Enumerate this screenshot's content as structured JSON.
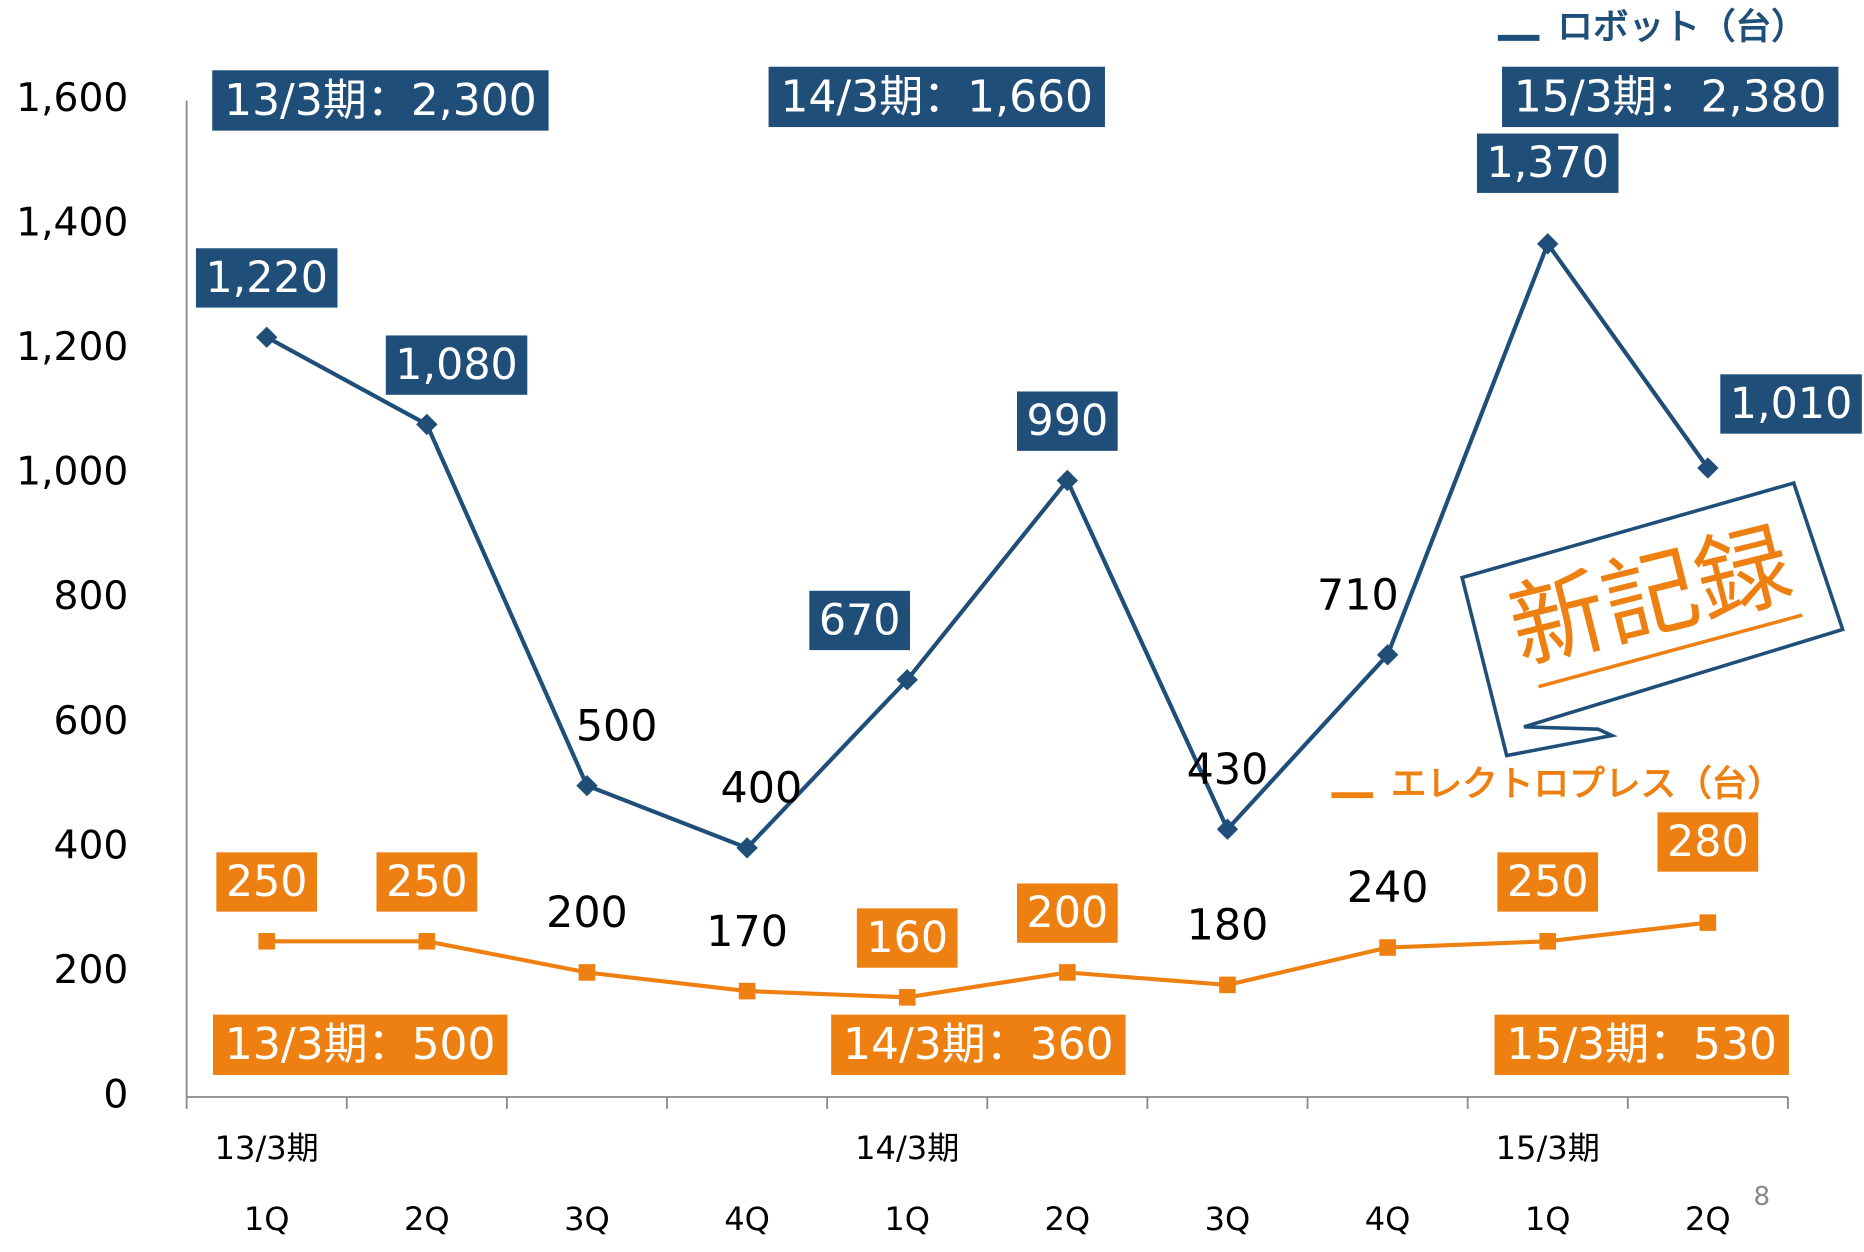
{
  "chart_data": {
    "type": "line",
    "categories": [
      "1Q",
      "2Q",
      "3Q",
      "4Q",
      "1Q",
      "2Q",
      "3Q",
      "4Q",
      "1Q",
      "2Q"
    ],
    "periods": [
      "13/3期",
      null,
      null,
      null,
      "14/3期",
      null,
      null,
      null,
      "15/3期",
      null
    ],
    "series": [
      {
        "name": "ロボット（台）",
        "color": "#1f4e79",
        "marker": "diamond",
        "values": [
          1220,
          1080,
          500,
          400,
          670,
          990,
          430,
          710,
          1370,
          1010
        ],
        "value_labels": [
          "1,220",
          "1,080",
          "500",
          "400",
          "670",
          "990",
          "430",
          "710",
          "1,370",
          "1,010"
        ],
        "boxed": [
          true,
          true,
          false,
          false,
          true,
          true,
          false,
          false,
          true,
          true
        ],
        "totals": [
          "13/3期：2,300",
          "14/3期：1,660",
          "15/3期：2,380"
        ]
      },
      {
        "name": "エレクトロプレス（台）",
        "color": "#ee8012",
        "marker": "square",
        "values": [
          250,
          250,
          200,
          170,
          160,
          200,
          180,
          240,
          250,
          280
        ],
        "boxed": [
          true,
          true,
          false,
          false,
          true,
          true,
          false,
          false,
          true,
          true
        ],
        "totals": [
          "13/3期：500",
          "14/3期：360",
          "15/3期：530"
        ]
      }
    ],
    "ylim": [
      0,
      1600
    ],
    "yticks": [
      0,
      200,
      400,
      600,
      800,
      {
        "value": 1000,
        "label": "1,000"
      },
      {
        "value": 1200,
        "label": "1,200"
      },
      {
        "value": 1400,
        "label": "1,400"
      },
      {
        "value": 1600,
        "label": "1,600"
      }
    ],
    "grid": false,
    "stamp": "新記録",
    "page_number": "8"
  }
}
